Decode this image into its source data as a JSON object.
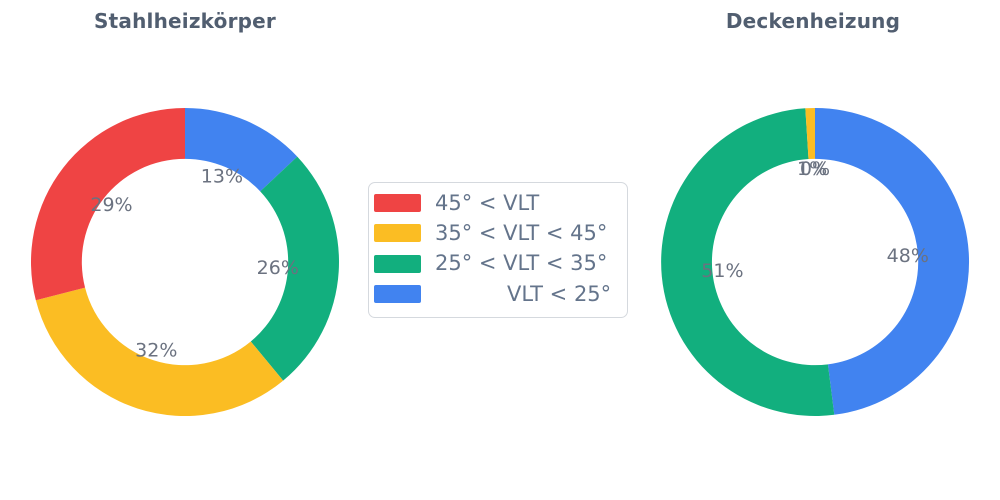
{
  "titles": {
    "left": "Stahlheizkörper",
    "right": "Deckenheizung"
  },
  "legend": {
    "items": [
      {
        "label": "45° < VLT",
        "color": "#ef4444"
      },
      {
        "label": "35° < VLT < 45°",
        "color": "#fbbd23"
      },
      {
        "label": "25° < VLT < 35°",
        "color": "#12af7e"
      },
      {
        "label": "VLT < 25°",
        "color": "#4183f0"
      }
    ],
    "border_color": "#d5d9de"
  },
  "chart_data": [
    {
      "type": "pie",
      "title": "Stahlheizkörper",
      "categories": [
        "45° < VLT",
        "35° < VLT < 45°",
        "25° < VLT < 35°",
        "VLT < 25°"
      ],
      "values": [
        29,
        32,
        26,
        13
      ],
      "value_labels": [
        "29%",
        "32%",
        "26%",
        "13%"
      ],
      "colors": [
        "#ef4444",
        "#fbbd23",
        "#12af7e",
        "#4183f0"
      ],
      "hole": 0.67,
      "start": "top",
      "direction": "clockwise-from-top-last-category-first",
      "label_position": "inside-near-hole",
      "label_color": "#6b7280"
    },
    {
      "type": "pie",
      "title": "Deckenheizung",
      "categories": [
        "45° < VLT",
        "35° < VLT < 45°",
        "25° < VLT < 35°",
        "VLT < 25°"
      ],
      "values": [
        0,
        1,
        51,
        48
      ],
      "value_labels": [
        "0%",
        "1%",
        "51%",
        "48%"
      ],
      "colors": [
        "#ef4444",
        "#fbbd23",
        "#12af7e",
        "#4183f0"
      ],
      "hole": 0.67,
      "start": "top",
      "direction": "clockwise-from-top-last-category-first",
      "label_position": "inside-near-hole",
      "label_color": "#6b7280"
    }
  ]
}
